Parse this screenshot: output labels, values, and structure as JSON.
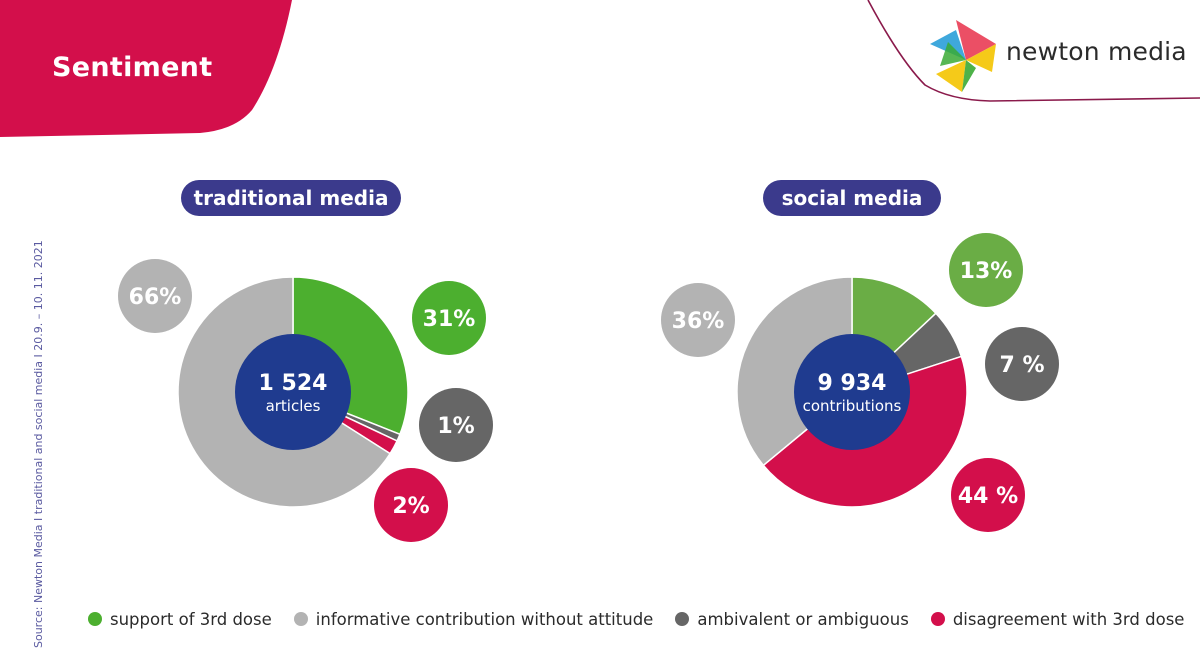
{
  "header": {
    "title": "Sentiment",
    "logo_text": "newton media",
    "accent_color": "#d30f4b"
  },
  "source": "Source: Newton Media  I  traditional and social media  I  20.9. – 10. 11. 2021",
  "colors": {
    "pill": "#3b3a8c",
    "center": "#1f3b8f",
    "support": "#4caf2f",
    "informative": "#b3b3b3",
    "ambivalent": "#666666",
    "disagreement": "#d30f4b",
    "support_social": "#6aad45"
  },
  "chart_data": [
    {
      "type": "pie",
      "title": "traditional media",
      "center_value": "1 524",
      "center_label": "articles",
      "slices": [
        {
          "name": "support of 3rd dose",
          "value": 31,
          "label": "31%"
        },
        {
          "name": "ambivalent or ambiguous",
          "value": 1,
          "label": "1%"
        },
        {
          "name": "disagreement with 3rd dose",
          "value": 2,
          "label": "2%"
        },
        {
          "name": "informative contribution without attitude",
          "value": 66,
          "label": "66%"
        }
      ]
    },
    {
      "type": "pie",
      "title": "social media",
      "center_value": "9 934",
      "center_label": "contributions",
      "slices": [
        {
          "name": "support of 3rd dose",
          "value": 13,
          "label": "13%"
        },
        {
          "name": "ambivalent or ambiguous",
          "value": 7,
          "label": "7 %"
        },
        {
          "name": "disagreement with 3rd dose",
          "value": 44,
          "label": "44 %"
        },
        {
          "name": "informative contribution without attitude",
          "value": 36,
          "label": "36%"
        }
      ]
    }
  ],
  "legend": [
    {
      "label": "support of 3rd dose",
      "color": "#4caf2f"
    },
    {
      "label": "informative contribution without attitude",
      "color": "#b3b3b3"
    },
    {
      "label": "ambivalent or ambiguous",
      "color": "#666666"
    },
    {
      "label": "disagreement with 3rd dose",
      "color": "#d30f4b"
    }
  ]
}
